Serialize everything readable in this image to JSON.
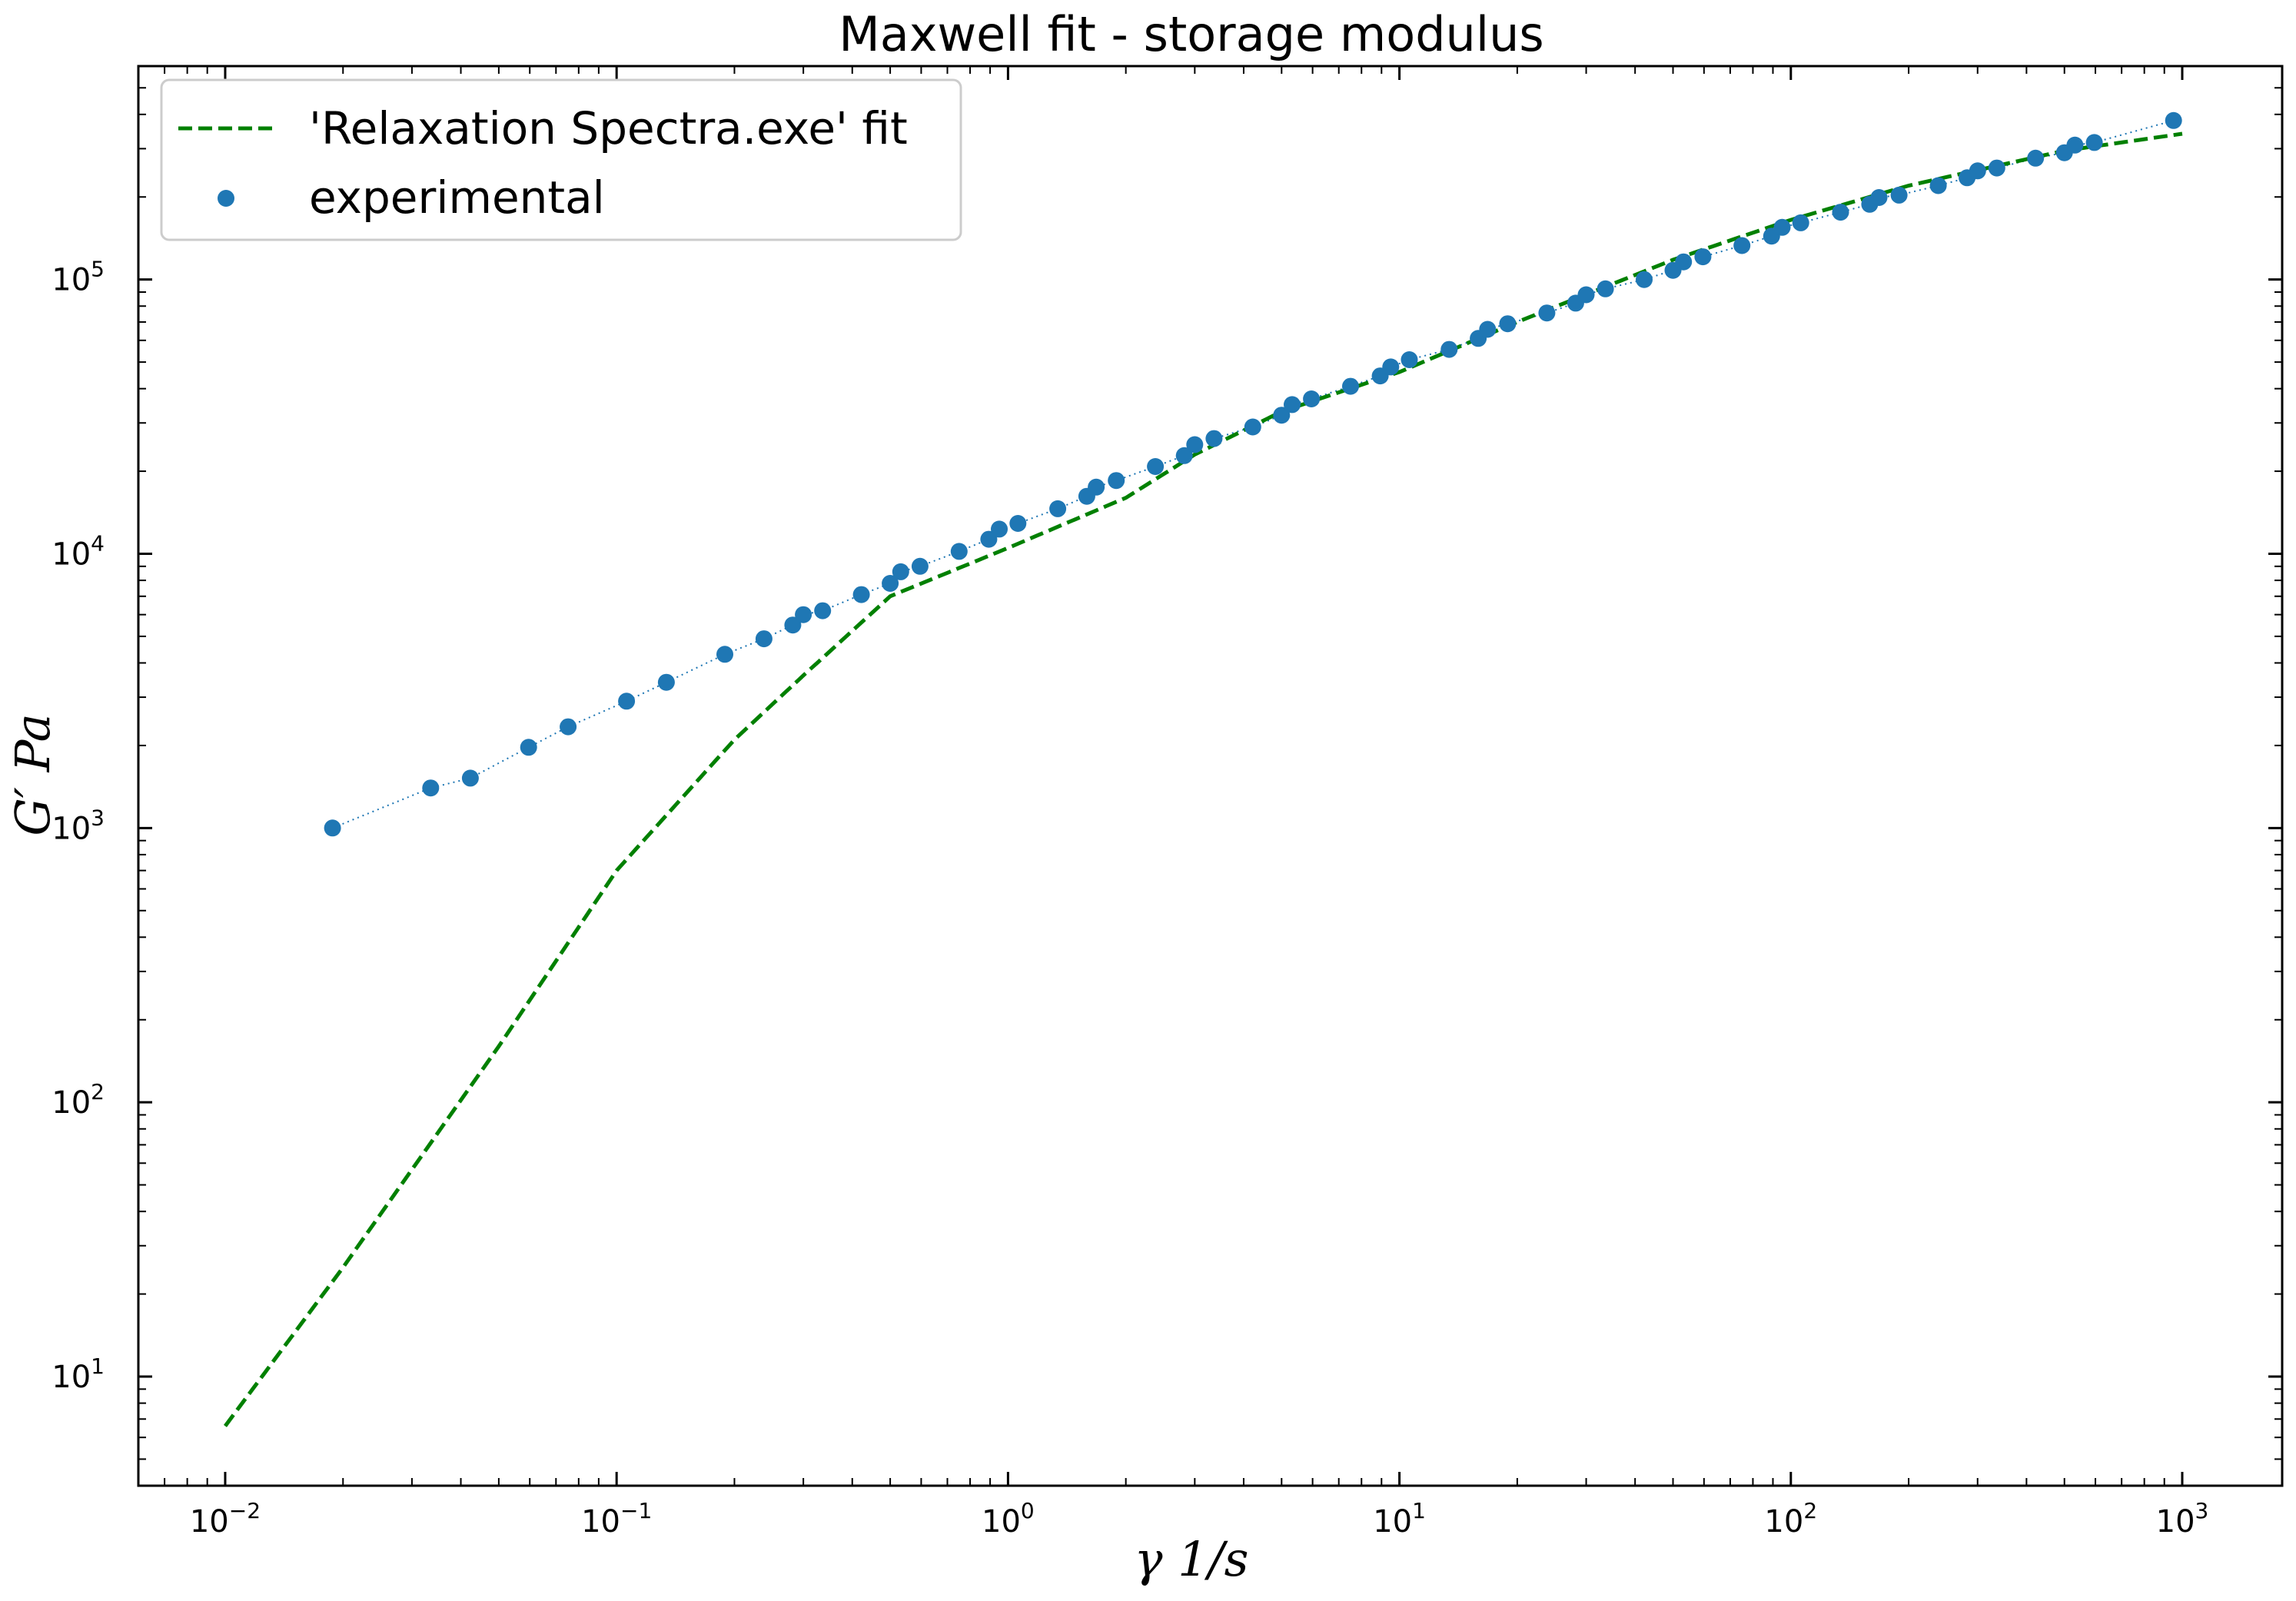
{
  "chart_data": {
    "type": "scatter",
    "title": "Maxwell fit - storage modulus",
    "xlabel": "γ    1/s",
    "ylabel": "G′    Pa",
    "xscale": "log",
    "yscale": "log",
    "xlim": [
      0.006,
      1800
    ],
    "ylim": [
      4,
      600000
    ],
    "x_ticks": [
      0.01,
      0.1,
      1,
      10,
      100,
      1000
    ],
    "x_tick_labels": [
      {
        "base": "10",
        "exp": "−2"
      },
      {
        "base": "10",
        "exp": "−1"
      },
      {
        "base": "10",
        "exp": "0"
      },
      {
        "base": "10",
        "exp": "1"
      },
      {
        "base": "10",
        "exp": "2"
      },
      {
        "base": "10",
        "exp": "3"
      }
    ],
    "y_ticks": [
      10,
      100,
      1000,
      10000,
      100000
    ],
    "y_tick_labels": [
      {
        "base": "10",
        "exp": "1"
      },
      {
        "base": "10",
        "exp": "2"
      },
      {
        "base": "10",
        "exp": "3"
      },
      {
        "base": "10",
        "exp": "4"
      },
      {
        "base": "10",
        "exp": "5"
      }
    ],
    "grid": false,
    "legend_position": "top-left",
    "series": [
      {
        "name": "'Relaxation Spectra.exe' fit",
        "style": "dashed-line",
        "color": "#008000",
        "x": [
          0.01,
          0.02,
          0.05,
          0.1,
          0.2,
          0.3,
          0.5,
          1,
          2,
          3,
          5,
          10,
          20,
          50,
          100,
          200,
          500,
          1000
        ],
        "y": [
          6.6,
          25,
          160,
          700,
          2100,
          3600,
          7000,
          10500,
          16000,
          23000,
          33000,
          46000,
          70000,
          118000,
          165000,
          220000,
          295000,
          340000
        ]
      },
      {
        "name": "experimental",
        "style": "scatter-dotted",
        "color": "#1f77b4",
        "x": [
          0.0188,
          0.0335,
          0.0423,
          0.0596,
          0.0752,
          0.106,
          0.134,
          0.189,
          0.238,
          0.282,
          0.3,
          0.336,
          0.422,
          0.5,
          0.532,
          0.596,
          0.75,
          0.893,
          0.95,
          1.06,
          1.34,
          1.59,
          1.68,
          1.89,
          2.38,
          2.82,
          3.0,
          3.36,
          4.22,
          5.0,
          5.32,
          5.96,
          7.5,
          8.93,
          9.5,
          10.6,
          13.4,
          15.9,
          16.8,
          18.9,
          23.8,
          28.2,
          30.0,
          33.6,
          42.2,
          50.0,
          53.2,
          59.6,
          75.0,
          89.3,
          95.0,
          106,
          134,
          159,
          168,
          189,
          238,
          282,
          300,
          336,
          422,
          500,
          532,
          596,
          950
        ],
        "y": [
          1000,
          1400,
          1520,
          1970,
          2340,
          2900,
          3400,
          4300,
          4900,
          5500,
          6000,
          6200,
          7100,
          7800,
          8600,
          9000,
          10200,
          11300,
          12300,
          12900,
          14600,
          16200,
          17500,
          18500,
          20800,
          22800,
          25000,
          26300,
          29000,
          32000,
          35000,
          36700,
          40800,
          44500,
          48000,
          51000,
          55600,
          61000,
          65800,
          69000,
          75500,
          82000,
          88000,
          92500,
          100000,
          108000,
          116000,
          121000,
          133000,
          144000,
          155000,
          161000,
          176000,
          188000,
          199000,
          203000,
          220000,
          235000,
          249000,
          255000,
          277000,
          290000,
          309000,
          316000,
          380000
        ]
      }
    ]
  }
}
